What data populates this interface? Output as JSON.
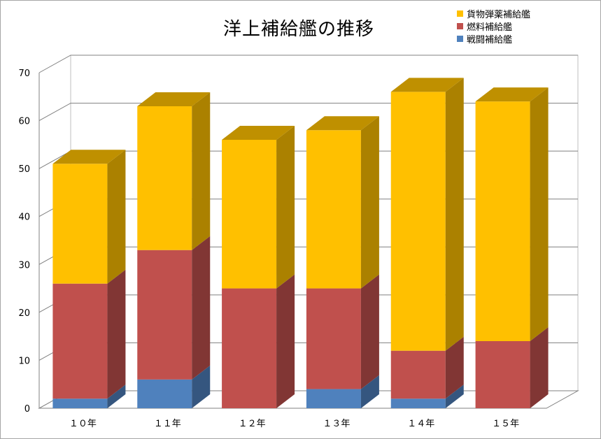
{
  "chart_data": {
    "type": "bar",
    "stacked": true,
    "three_d": true,
    "title": "洋上補給艦の推移",
    "categories": [
      "１０年",
      "１１年",
      "１２年",
      "１３年",
      "１４年",
      "１５年"
    ],
    "series": [
      {
        "name": "戦闘補給艦",
        "color": "#4f81bd",
        "values": [
          2,
          6,
          0,
          4,
          2,
          0
        ]
      },
      {
        "name": "燃料補給艦",
        "color": "#c0504d",
        "values": [
          24,
          27,
          25,
          21,
          10,
          14
        ]
      },
      {
        "name": "貨物弾薬補給艦",
        "color": "#ffc000",
        "values": [
          25,
          30,
          31,
          33,
          54,
          50
        ]
      }
    ],
    "ylim": [
      0,
      70
    ],
    "yticks": [
      0,
      10,
      20,
      30,
      40,
      50,
      60,
      70
    ],
    "grid": true,
    "legend_position": "top-right"
  }
}
